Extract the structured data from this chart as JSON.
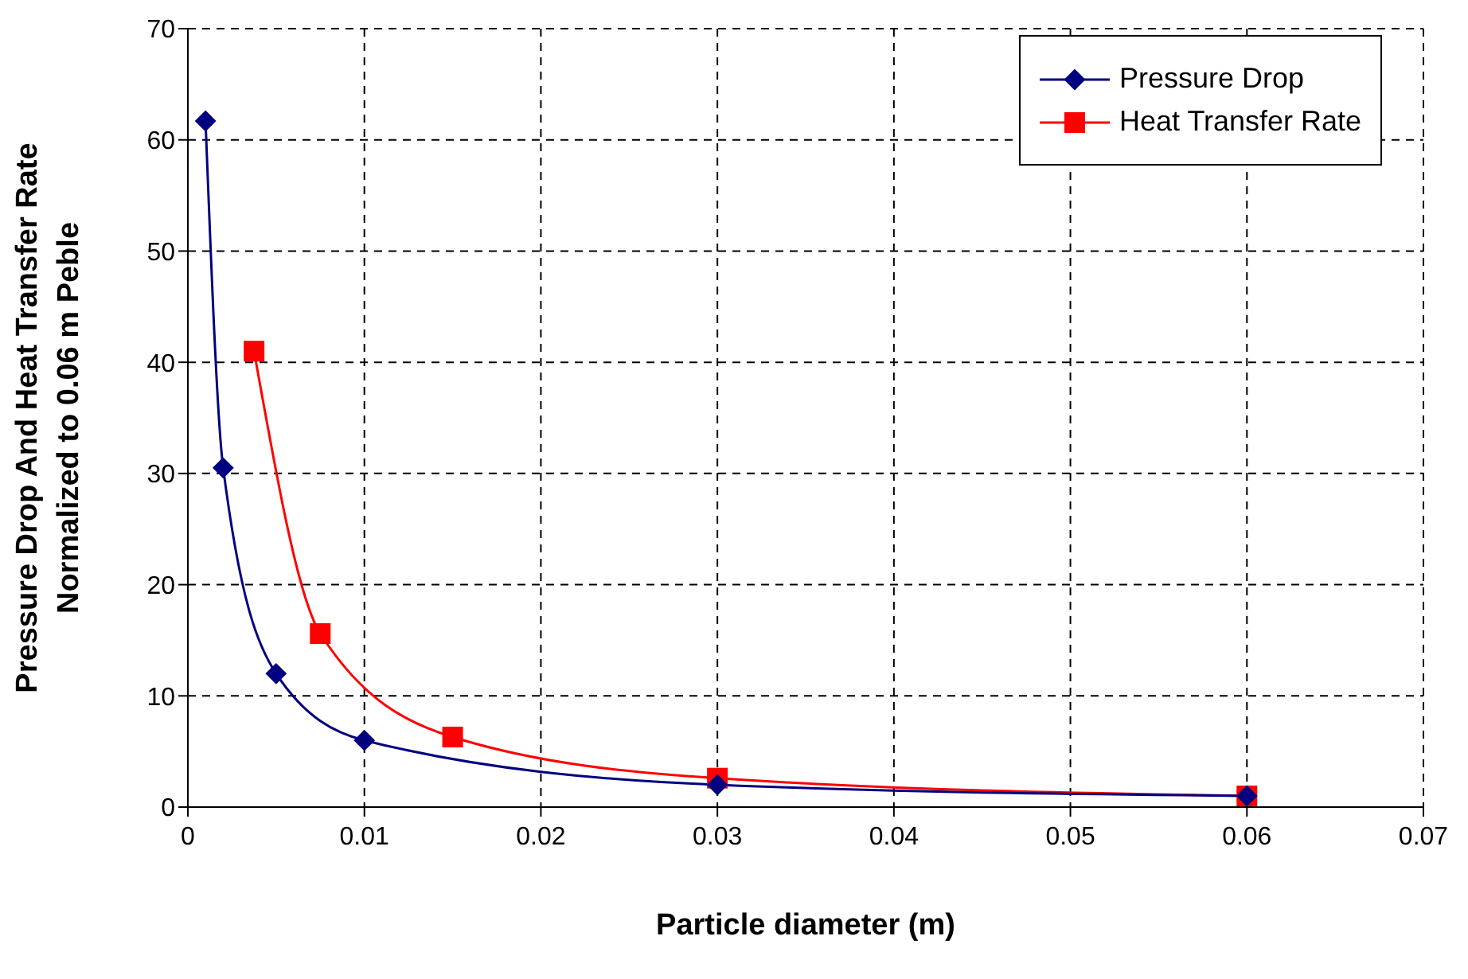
{
  "chart_data": {
    "type": "line",
    "xlabel": "Particle diameter (m)",
    "ylabel": "Pressure Drop And Heat Transfer Rate\nNormalized to 0.06 m Peble",
    "xlim": [
      0,
      0.07
    ],
    "xticks": [
      0,
      0.01,
      0.02,
      0.03,
      0.04,
      0.05,
      0.06,
      0.07
    ],
    "ylim": [
      0,
      70
    ],
    "yticks": [
      0,
      10,
      20,
      30,
      40,
      50,
      60,
      70
    ],
    "grid": true,
    "legend": "top right",
    "line_style": "solid",
    "series": [
      {
        "name": "Pressure Drop",
        "color": "#000080",
        "marker": "diamond",
        "x": [
          0.001,
          0.002,
          0.005,
          0.01,
          0.03,
          0.06
        ],
        "values": [
          61.7,
          30.5,
          12,
          6,
          2,
          1
        ]
      },
      {
        "name": "Heat Transfer Rate",
        "color": "#ff0000",
        "marker": "square",
        "x": [
          0.00375,
          0.0075,
          0.015,
          0.03,
          0.06
        ],
        "values": [
          41,
          15.6,
          6.3,
          2.6,
          1
        ]
      }
    ]
  }
}
